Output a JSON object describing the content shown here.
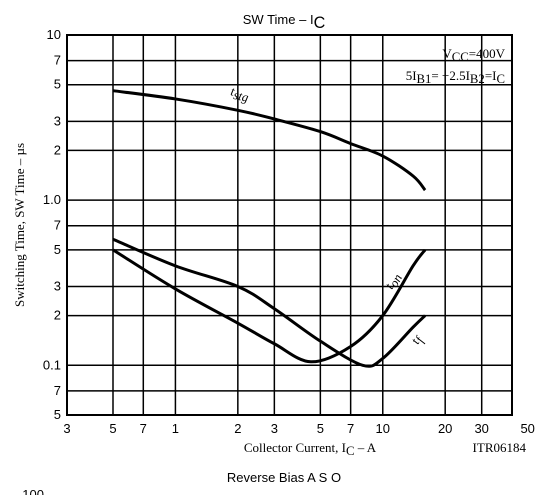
{
  "chart_data": {
    "type": "line",
    "title": [
      "SW Time  –  I",
      "C"
    ],
    "subtitle": "Reverse Bias A S O",
    "xlabel": [
      "Collector Current, I",
      "C",
      "  –  A"
    ],
    "ylabel": "Switching Time, SW Time  –  µs",
    "annotations": [
      [
        "V",
        "CC",
        "=400V"
      ],
      [
        "5I",
        "B1",
        "= −2.5I",
        "B2",
        "=I",
        "C"
      ]
    ],
    "code": "ITR06184",
    "footer": "100",
    "log_x": true,
    "log_y": true,
    "grid": true,
    "xlim": [
      0.3,
      42
    ],
    "xticks": [
      {
        "value": 0.3,
        "label": "3"
      },
      {
        "value": 0.5,
        "label": "5"
      },
      {
        "value": 0.7,
        "label": "7"
      },
      1.0,
      2,
      3,
      5,
      7,
      10,
      20,
      30,
      50
    ],
    "ylim": [
      0.05,
      10
    ],
    "yticks": [
      10,
      7,
      5,
      3,
      2,
      {
        "value": 1,
        "label": "1.0"
      },
      {
        "value": 0.7,
        "label": "7"
      },
      {
        "value": 0.5,
        "label": "5"
      },
      {
        "value": 0.3,
        "label": "3"
      },
      {
        "value": 0.2,
        "label": "2"
      },
      0.1,
      {
        "value": 0.07,
        "label": "7"
      },
      {
        "value": 0.05,
        "label": "5"
      }
    ],
    "series": [
      {
        "name": [
          "t",
          "stg"
        ],
        "color": "#000000",
        "x": [
          0.5,
          1,
          2,
          3,
          5,
          7,
          10,
          14,
          16
        ],
        "values": [
          4.6,
          4.1,
          3.5,
          3.1,
          2.6,
          2.2,
          1.85,
          1.4,
          1.15
        ]
      },
      {
        "name": [
          "t",
          "on"
        ],
        "color": "#000000",
        "x": [
          0.5,
          1,
          2,
          3,
          4.5,
          7,
          10,
          14,
          16
        ],
        "values": [
          0.5,
          0.29,
          0.18,
          0.135,
          0.105,
          0.13,
          0.2,
          0.4,
          0.5
        ]
      },
      {
        "name": [
          "t",
          "f"
        ],
        "color": "#000000",
        "x": [
          0.5,
          1,
          2,
          3,
          5,
          8,
          10,
          14,
          16
        ],
        "values": [
          0.58,
          0.4,
          0.3,
          0.22,
          0.14,
          0.1,
          0.11,
          0.17,
          0.2
        ]
      }
    ]
  }
}
